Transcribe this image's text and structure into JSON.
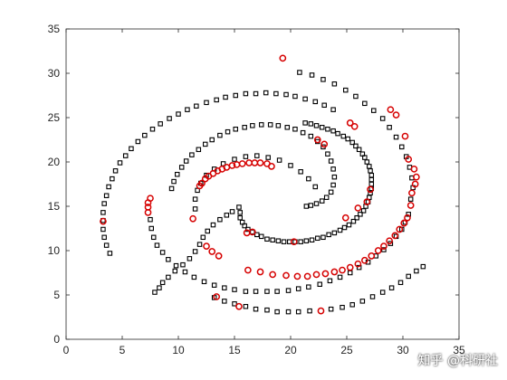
{
  "watermark": "知乎 @科研社",
  "chart_data": {
    "type": "scatter",
    "title": "",
    "xlabel": "",
    "ylabel": "",
    "xlim": [
      0,
      35
    ],
    "ylim": [
      0,
      35
    ],
    "xticks": [
      "0",
      "5",
      "10",
      "15",
      "20",
      "25",
      "30",
      "35"
    ],
    "yticks": [
      "0",
      "5",
      "10",
      "15",
      "20",
      "25",
      "30",
      "35"
    ],
    "grid": false,
    "series": [
      {
        "marker": "square",
        "color": "#000000",
        "points": [
          [
            3.9,
            9.7
          ],
          [
            3.6,
            10.6
          ],
          [
            3.4,
            11.5
          ],
          [
            3.3,
            12.4
          ],
          [
            3.3,
            13.4
          ],
          [
            3.3,
            14.3
          ],
          [
            3.4,
            15.3
          ],
          [
            3.6,
            16.2
          ],
          [
            3.8,
            17.2
          ],
          [
            4.1,
            18.1
          ],
          [
            4.4,
            19.0
          ],
          [
            4.8,
            19.9
          ],
          [
            5.3,
            20.7
          ],
          [
            5.8,
            21.5
          ],
          [
            6.4,
            22.3
          ],
          [
            7.0,
            23.0
          ],
          [
            7.7,
            23.7
          ],
          [
            8.4,
            24.3
          ],
          [
            9.2,
            24.9
          ],
          [
            10.0,
            25.4
          ],
          [
            10.8,
            25.9
          ],
          [
            11.6,
            26.3
          ],
          [
            12.5,
            26.7
          ],
          [
            13.4,
            27.0
          ],
          [
            14.2,
            27.3
          ],
          [
            15.1,
            27.5
          ],
          [
            16.0,
            27.7
          ],
          [
            16.9,
            27.7
          ],
          [
            17.8,
            27.8
          ],
          [
            18.7,
            27.7
          ],
          [
            19.6,
            27.6
          ],
          [
            20.4,
            27.4
          ],
          [
            21.3,
            27.1
          ],
          [
            22.2,
            26.8
          ],
          [
            23.0,
            26.4
          ],
          [
            23.8,
            25.9
          ],
          [
            13.2,
            4.7
          ],
          [
            14.1,
            4.3
          ],
          [
            15.0,
            4.0
          ],
          [
            16.0,
            3.7
          ],
          [
            16.9,
            3.4
          ],
          [
            17.9,
            3.3
          ],
          [
            18.8,
            3.1
          ],
          [
            19.8,
            3.1
          ],
          [
            20.7,
            3.1
          ],
          [
            21.7,
            3.2
          ],
          [
            23.6,
            3.4
          ],
          [
            24.6,
            3.6
          ],
          [
            25.5,
            3.9
          ],
          [
            26.4,
            4.3
          ],
          [
            27.3,
            4.8
          ],
          [
            28.2,
            5.3
          ],
          [
            29.0,
            5.8
          ],
          [
            29.8,
            6.4
          ],
          [
            30.5,
            7.1
          ],
          [
            31.2,
            7.7
          ],
          [
            31.8,
            8.2
          ],
          [
            30.7,
            15.8
          ],
          [
            30.9,
            17.1
          ],
          [
            30.8,
            18.2
          ],
          [
            30.6,
            19.4
          ],
          [
            30.3,
            20.6
          ],
          [
            29.9,
            21.7
          ],
          [
            29.4,
            22.8
          ],
          [
            28.8,
            23.9
          ],
          [
            28.2,
            24.9
          ],
          [
            27.4,
            25.8
          ],
          [
            26.6,
            26.6
          ],
          [
            25.8,
            27.4
          ],
          [
            24.9,
            28.1
          ],
          [
            23.9,
            28.8
          ],
          [
            22.9,
            29.3
          ],
          [
            21.9,
            29.8
          ],
          [
            20.8,
            30.1
          ],
          [
            14.8,
            14.4
          ],
          [
            14.3,
            14.0
          ],
          [
            13.7,
            13.5
          ],
          [
            13.1,
            12.9
          ],
          [
            12.6,
            12.2
          ],
          [
            12.2,
            11.5
          ],
          [
            11.9,
            10.7
          ],
          [
            11.5,
            9.9
          ],
          [
            11.0,
            9.1
          ],
          [
            10.4,
            8.4
          ],
          [
            9.7,
            7.7
          ],
          [
            9.1,
            7.0
          ],
          [
            8.6,
            6.4
          ],
          [
            8.3,
            5.8
          ],
          [
            7.9,
            5.3
          ],
          [
            11.5,
            14.7
          ],
          [
            11.5,
            15.8
          ],
          [
            11.7,
            16.8
          ],
          [
            12.0,
            17.6
          ],
          [
            12.5,
            18.5
          ],
          [
            13.2,
            19.2
          ],
          [
            14.0,
            19.8
          ],
          [
            15.0,
            20.3
          ],
          [
            16.0,
            20.6
          ],
          [
            17.0,
            20.7
          ],
          [
            18.0,
            20.5
          ],
          [
            19.0,
            20.2
          ],
          [
            20.0,
            19.6
          ],
          [
            20.9,
            18.9
          ],
          [
            21.6,
            18.1
          ],
          [
            22.2,
            17.2
          ],
          [
            7.5,
            13.5
          ],
          [
            7.6,
            12.5
          ],
          [
            7.8,
            11.5
          ],
          [
            8.1,
            10.6
          ],
          [
            8.6,
            9.8
          ],
          [
            9.1,
            9.0
          ],
          [
            9.8,
            8.3
          ],
          [
            10.6,
            7.6
          ],
          [
            11.4,
            7.0
          ],
          [
            12.3,
            6.5
          ],
          [
            13.2,
            6.1
          ],
          [
            14.1,
            5.8
          ],
          [
            15.0,
            5.6
          ],
          [
            16.0,
            5.4
          ],
          [
            16.9,
            5.4
          ],
          [
            17.9,
            5.4
          ],
          [
            18.8,
            5.4
          ],
          [
            19.8,
            5.5
          ],
          [
            20.7,
            5.7
          ],
          [
            21.6,
            5.9
          ],
          [
            22.6,
            6.2
          ],
          [
            23.5,
            6.6
          ],
          [
            24.4,
            7.0
          ],
          [
            25.3,
            7.5
          ],
          [
            26.1,
            8.1
          ],
          [
            26.9,
            8.7
          ],
          [
            27.6,
            9.4
          ],
          [
            28.3,
            10.1
          ],
          [
            28.9,
            10.8
          ],
          [
            29.4,
            11.6
          ],
          [
            29.9,
            12.4
          ],
          [
            30.2,
            13.2
          ],
          [
            30.5,
            14.1
          ],
          [
            15.4,
            14.9
          ],
          [
            15.5,
            14.3
          ],
          [
            15.5,
            13.7
          ],
          [
            15.7,
            13.2
          ],
          [
            15.9,
            12.8
          ],
          [
            16.2,
            12.4
          ],
          [
            16.6,
            12.1
          ],
          [
            17.0,
            11.8
          ],
          [
            17.4,
            11.6
          ],
          [
            17.9,
            11.3
          ],
          [
            18.4,
            11.2
          ],
          [
            18.9,
            11.1
          ],
          [
            19.4,
            11.0
          ],
          [
            19.9,
            11.0
          ],
          [
            20.4,
            11.0
          ],
          [
            20.9,
            11.0
          ],
          [
            21.4,
            11.1
          ],
          [
            21.9,
            11.2
          ],
          [
            22.4,
            11.4
          ],
          [
            22.9,
            11.5
          ],
          [
            23.4,
            11.8
          ],
          [
            23.9,
            12.0
          ],
          [
            24.4,
            12.3
          ],
          [
            24.8,
            12.6
          ],
          [
            25.2,
            12.9
          ],
          [
            25.6,
            13.3
          ],
          [
            25.9,
            13.7
          ],
          [
            26.2,
            14.1
          ],
          [
            26.5,
            14.5
          ],
          [
            26.7,
            15.0
          ],
          [
            26.9,
            15.5
          ],
          [
            27.0,
            16.0
          ],
          [
            27.1,
            16.5
          ],
          [
            27.2,
            17.0
          ],
          [
            27.2,
            17.5
          ],
          [
            27.2,
            18.0
          ],
          [
            27.2,
            18.5
          ],
          [
            27.1,
            19.0
          ],
          [
            27.0,
            19.5
          ],
          [
            26.8,
            20.0
          ],
          [
            26.6,
            20.5
          ],
          [
            26.4,
            20.9
          ],
          [
            26.1,
            21.4
          ],
          [
            25.8,
            21.8
          ],
          [
            25.5,
            22.2
          ],
          [
            25.1,
            22.6
          ],
          [
            24.7,
            22.9
          ],
          [
            24.2,
            23.2
          ],
          [
            23.8,
            23.5
          ],
          [
            23.3,
            23.7
          ],
          [
            22.8,
            23.9
          ],
          [
            22.3,
            24.1
          ],
          [
            21.8,
            24.3
          ],
          [
            21.3,
            24.4
          ],
          [
            9.4,
            17.0
          ],
          [
            9.6,
            17.8
          ],
          [
            9.9,
            18.6
          ],
          [
            10.3,
            19.4
          ],
          [
            10.7,
            20.1
          ],
          [
            11.2,
            20.8
          ],
          [
            11.8,
            21.4
          ],
          [
            12.4,
            22.0
          ],
          [
            13.0,
            22.5
          ],
          [
            13.7,
            23.0
          ],
          [
            14.4,
            23.4
          ],
          [
            15.1,
            23.7
          ],
          [
            15.9,
            23.9
          ],
          [
            16.6,
            24.1
          ],
          [
            17.4,
            24.2
          ],
          [
            18.2,
            24.2
          ],
          [
            18.9,
            24.1
          ],
          [
            19.7,
            23.9
          ],
          [
            20.4,
            23.7
          ],
          [
            21.1,
            23.3
          ],
          [
            21.8,
            22.9
          ],
          [
            22.4,
            22.3
          ],
          [
            22.9,
            21.7
          ],
          [
            23.3,
            20.9
          ],
          [
            23.6,
            20.1
          ],
          [
            23.8,
            19.2
          ],
          [
            23.9,
            18.3
          ],
          [
            23.8,
            17.4
          ],
          [
            23.6,
            16.6
          ],
          [
            23.2,
            16.0
          ],
          [
            22.8,
            15.6
          ],
          [
            22.3,
            15.3
          ],
          [
            21.8,
            15.1
          ],
          [
            21.4,
            15.0
          ]
        ]
      },
      {
        "marker": "circle",
        "color": "#d60000",
        "points": [
          [
            3.3,
            13.3
          ],
          [
            7.3,
            14.3
          ],
          [
            7.3,
            14.9
          ],
          [
            7.3,
            15.4
          ],
          [
            7.5,
            15.9
          ],
          [
            11.3,
            13.6
          ],
          [
            12.5,
            10.5
          ],
          [
            13.0,
            9.9
          ],
          [
            13.6,
            9.4
          ],
          [
            15.4,
            3.7
          ],
          [
            13.4,
            4.8
          ],
          [
            22.7,
            3.2
          ],
          [
            16.2,
            7.8
          ],
          [
            17.3,
            7.6
          ],
          [
            18.4,
            7.3
          ],
          [
            19.6,
            7.2
          ],
          [
            20.6,
            7.1
          ],
          [
            21.5,
            7.1
          ],
          [
            22.3,
            7.3
          ],
          [
            23.1,
            7.4
          ],
          [
            23.9,
            7.6
          ],
          [
            24.6,
            7.8
          ],
          [
            25.3,
            8.1
          ],
          [
            26.0,
            8.5
          ],
          [
            26.6,
            8.9
          ],
          [
            27.2,
            9.4
          ],
          [
            27.8,
            10.0
          ],
          [
            28.3,
            10.5
          ],
          [
            28.8,
            11.1
          ],
          [
            29.3,
            11.7
          ],
          [
            29.7,
            12.4
          ],
          [
            30.1,
            13.1
          ],
          [
            30.4,
            13.7
          ],
          [
            30.7,
            15.1
          ],
          [
            30.8,
            16.5
          ],
          [
            31.1,
            17.5
          ],
          [
            31.2,
            18.3
          ],
          [
            31.0,
            19.2
          ],
          [
            30.5,
            20.3
          ],
          [
            30.2,
            22.9
          ],
          [
            29.4,
            25.3
          ],
          [
            28.9,
            25.9
          ],
          [
            25.3,
            24.4
          ],
          [
            25.7,
            24.0
          ],
          [
            22.4,
            22.5
          ],
          [
            23.0,
            22.0
          ],
          [
            24.9,
            13.7
          ],
          [
            26.0,
            14.8
          ],
          [
            26.8,
            15.5
          ],
          [
            27.1,
            16.9
          ],
          [
            20.3,
            11.0
          ],
          [
            16.1,
            12.0
          ],
          [
            16.6,
            12.1
          ],
          [
            11.9,
            17.3
          ],
          [
            12.1,
            17.6
          ],
          [
            12.4,
            18.1
          ],
          [
            12.7,
            18.4
          ],
          [
            13.1,
            18.7
          ],
          [
            13.5,
            19.0
          ],
          [
            13.9,
            19.2
          ],
          [
            14.3,
            19.4
          ],
          [
            14.8,
            19.6
          ],
          [
            15.2,
            19.7
          ],
          [
            15.7,
            19.8
          ],
          [
            16.3,
            19.9
          ],
          [
            16.8,
            19.9
          ],
          [
            17.3,
            19.9
          ],
          [
            17.9,
            19.8
          ],
          [
            18.3,
            19.5
          ],
          [
            19.3,
            31.7
          ]
        ]
      }
    ]
  }
}
